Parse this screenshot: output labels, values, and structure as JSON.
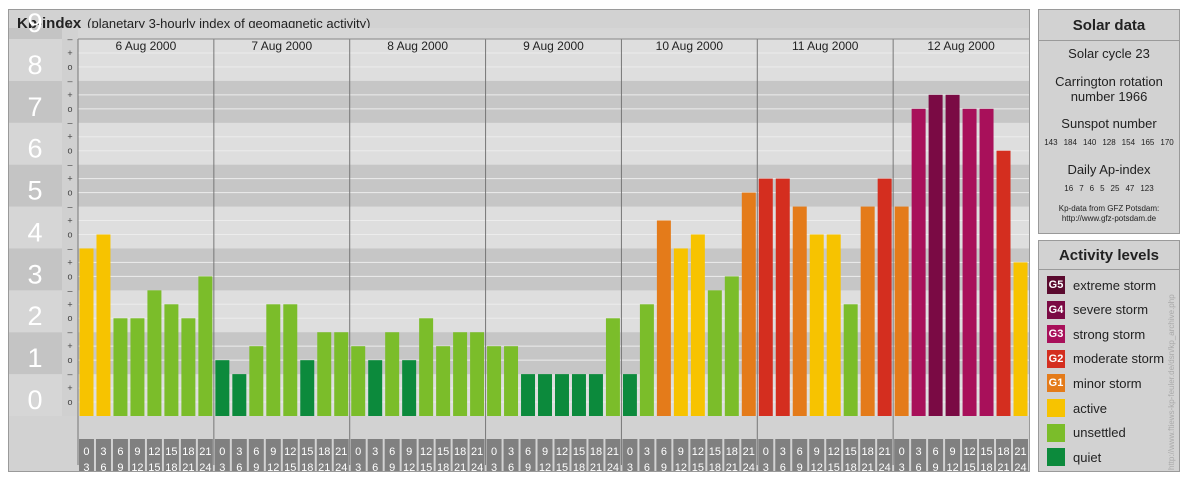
{
  "header": {
    "title": "Kp-index",
    "subtitle": "(planetary 3-hourly index of geomagnetic activity)"
  },
  "solar": {
    "title": "Solar data",
    "cycle": "Solar cycle 23",
    "carrington_line1": "Carrington rotation",
    "carrington_line2": "number 1966",
    "sunspot_title": "Sunspot number",
    "sunspot_values": [
      "143",
      "184",
      "140",
      "128",
      "154",
      "165",
      "170"
    ],
    "ap_title": "Daily Ap-index",
    "ap_values": [
      "16",
      "7",
      "6",
      "5",
      "25",
      "47",
      "123"
    ],
    "source_line1": "Kp-data from GFZ Potsdam:",
    "source_line2": "http://www.gfz-potsdam.de"
  },
  "activity": {
    "title": "Activity levels",
    "levels": [
      {
        "badge": "G5",
        "label": "extreme storm",
        "color": "#5a0a2e"
      },
      {
        "badge": "G4",
        "label": "severe storm",
        "color": "#7a0a44"
      },
      {
        "badge": "G3",
        "label": "strong storm",
        "color": "#a8105a"
      },
      {
        "badge": "G2",
        "label": "moderate storm",
        "color": "#d42e1f"
      },
      {
        "badge": "G1",
        "label": "minor storm",
        "color": "#e47b1a"
      },
      {
        "badge": "",
        "label": "active",
        "color": "#f7c300"
      },
      {
        "badge": "",
        "label": "unsettled",
        "color": "#7bbd2a"
      },
      {
        "badge": "",
        "label": "quiet",
        "color": "#0c8a3c"
      }
    ]
  },
  "credit": "http://www.ftiews-kp-feuler.de/dsn/kp_archive.php",
  "chart_data": {
    "type": "bar",
    "title": "Kp-index",
    "ylim": [
      0,
      9
    ],
    "y_ticks": [
      "0",
      "1",
      "2",
      "3",
      "4",
      "5",
      "6",
      "7",
      "8",
      "9"
    ],
    "sub_ticks": [
      "o",
      "+",
      "–"
    ],
    "days": [
      "6 Aug 2000",
      "7 Aug 2000",
      "8 Aug 2000",
      "9 Aug 2000",
      "10 Aug 2000",
      "11 Aug 2000",
      "12 Aug 2000"
    ],
    "interval_start": [
      "0",
      "3",
      "6",
      "9",
      "12",
      "15",
      "18",
      "21"
    ],
    "interval_end": [
      "3",
      "6",
      "9",
      "12",
      "15",
      "18",
      "21",
      "24"
    ],
    "values": [
      [
        4.0,
        4.333,
        2.333,
        2.333,
        3.0,
        2.667,
        2.333,
        3.333
      ],
      [
        1.333,
        1.0,
        1.667,
        2.667,
        2.667,
        1.333,
        2.0,
        2.0
      ],
      [
        1.667,
        1.333,
        2.0,
        1.333,
        2.333,
        1.667,
        2.0,
        2.0
      ],
      [
        1.667,
        1.667,
        1.0,
        1.0,
        1.0,
        1.0,
        1.0,
        2.333
      ],
      [
        1.0,
        2.667,
        4.667,
        4.0,
        4.333,
        3.0,
        3.333,
        5.333
      ],
      [
        5.667,
        5.667,
        5.0,
        4.333,
        4.333,
        2.667,
        5.0,
        5.667
      ],
      [
        5.0,
        7.333,
        7.667,
        7.667,
        7.333,
        7.333,
        6.333,
        3.667
      ]
    ]
  }
}
